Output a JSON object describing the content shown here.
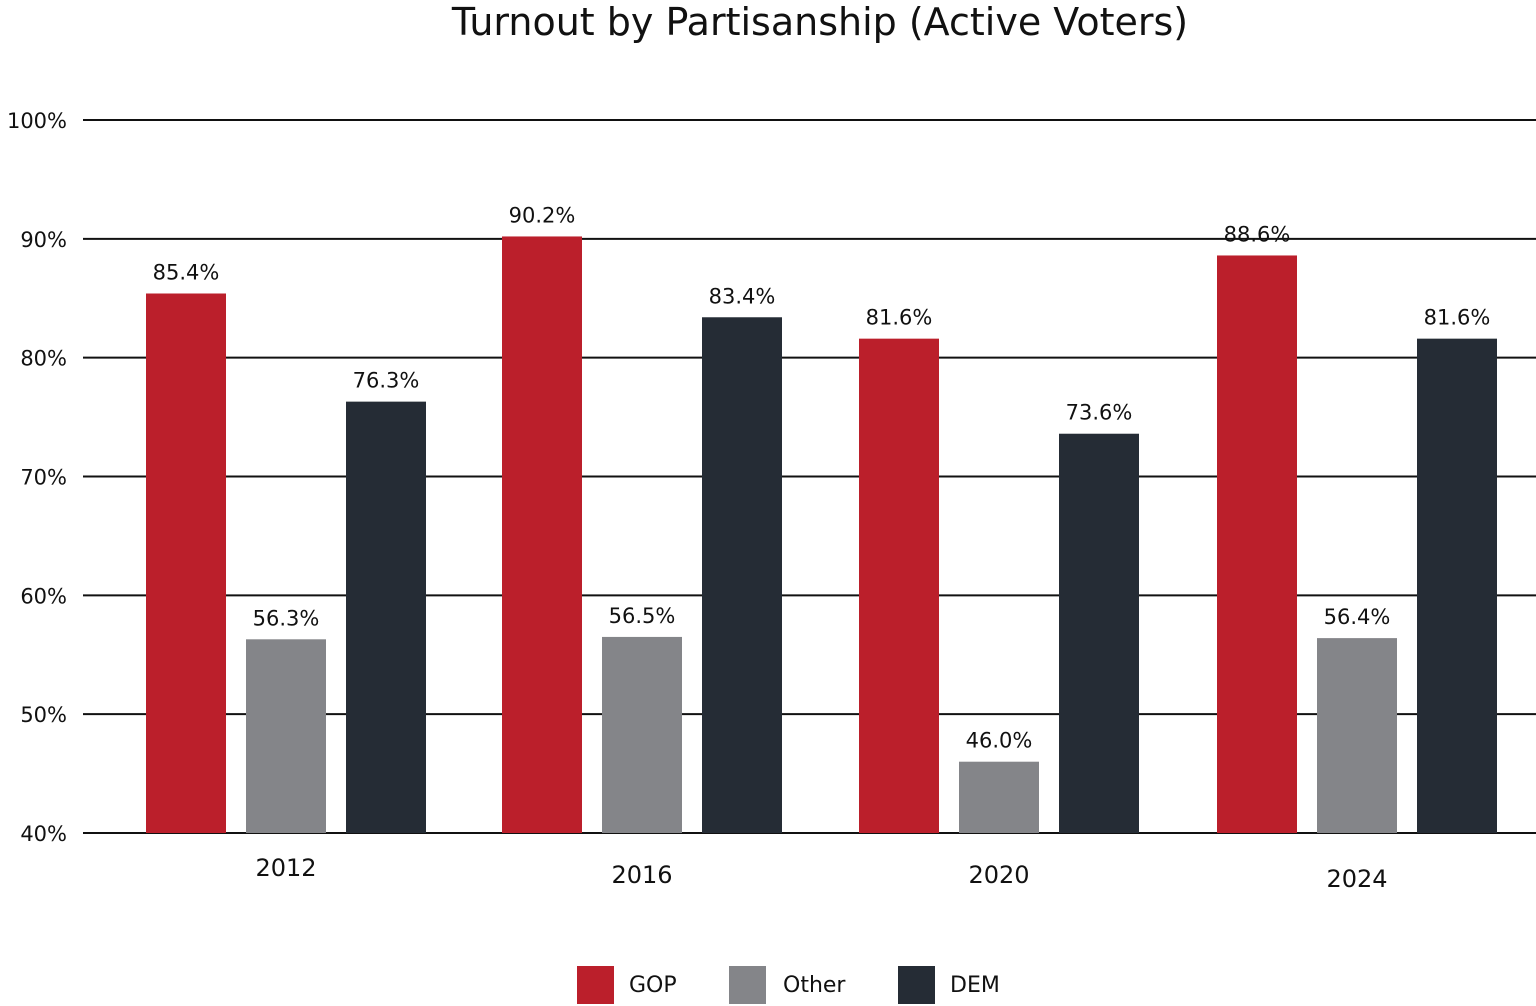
{
  "chart_data": {
    "type": "bar",
    "title": "Turnout by Partisanship (Active Voters)",
    "xlabel": "",
    "ylabel": "",
    "categories": [
      "2012",
      "2016",
      "2020",
      "2024"
    ],
    "series": [
      {
        "name": "GOP",
        "color": "#bb1f2b",
        "values": [
          85.4,
          90.2,
          81.6,
          88.6
        ],
        "labels": [
          "85.4%",
          "90.2%",
          "81.6%",
          "88.6%"
        ]
      },
      {
        "name": "Other",
        "color": "#848589",
        "values": [
          56.3,
          56.5,
          46.0,
          56.4
        ],
        "labels": [
          "56.3%",
          "56.5%",
          "46.0%",
          "56.4%"
        ]
      },
      {
        "name": "DEM",
        "color": "#252c35",
        "values": [
          76.3,
          83.4,
          73.6,
          81.6
        ],
        "labels": [
          "76.3%",
          "83.4%",
          "73.6%",
          "81.6%"
        ]
      }
    ],
    "ylim": [
      40,
      100
    ],
    "yticks": [
      "40%",
      "50%",
      "60%",
      "70%",
      "80%",
      "90%",
      "100%"
    ],
    "grid": true,
    "legend_position": "bottom-center"
  }
}
